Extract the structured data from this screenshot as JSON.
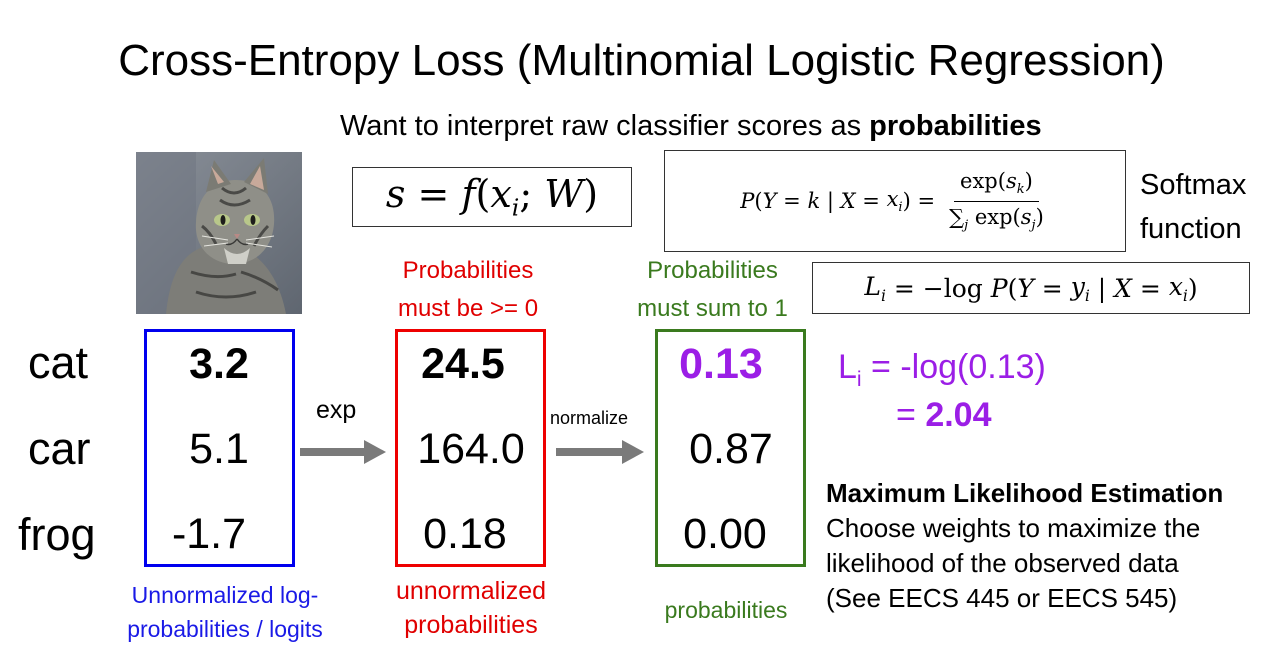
{
  "title": {
    "main": "Cross-Entropy Loss",
    "paren": " (Multinomial Logistic Regression)"
  },
  "subtitle": {
    "prefix": "Want to interpret raw classifier scores as ",
    "emphasis": "probabilities"
  },
  "equations": {
    "score_fn": "s = f(xᵢ; W)",
    "softmax": "P(Y = k | X = xᵢ) = exp(s_k) / Σ_j exp(s_j)",
    "loss": "Lᵢ = −log P(Y = yᵢ | X = xᵢ)"
  },
  "softmax_label": {
    "line1": "Softmax",
    "line2": "function"
  },
  "rows": [
    "cat",
    "car",
    "frog"
  ],
  "logits": [
    "3.2",
    "5.1",
    "-1.7"
  ],
  "unnormalized": [
    "24.5",
    "164.0",
    "0.18"
  ],
  "probabilities": [
    "0.13",
    "0.87",
    "0.00"
  ],
  "arrows": {
    "exp": "exp",
    "normalize": "normalize"
  },
  "notes": {
    "nonneg_line1": "Probabilities",
    "nonneg_line2": "must be >= 0",
    "sum_line1": "Probabilities",
    "sum_line2": "must sum to 1"
  },
  "captions": {
    "logits_line1": "Unnormalized log-",
    "logits_line2": "probabilities / logits",
    "unnorm_line1": "unnormalized",
    "unnorm_line2": "probabilities",
    "probs": "probabilities"
  },
  "loss_calc": {
    "line1_suffix": " = -log(0.13)",
    "line2_prefix": "= ",
    "line2_value": "2.04"
  },
  "mle": {
    "title": "Maximum Likelihood Estimation",
    "line1": "Choose weights to maximize the",
    "line2": "likelihood of the observed data",
    "line3": "(See EECS 445 or EECS 545)"
  },
  "colors": {
    "logits": "#0000ee",
    "unnormalized": "#ee0000",
    "probabilities": "#3a7a1e",
    "loss": "#9b1ee6"
  },
  "image": {
    "subject_icon": "cat-photo"
  }
}
